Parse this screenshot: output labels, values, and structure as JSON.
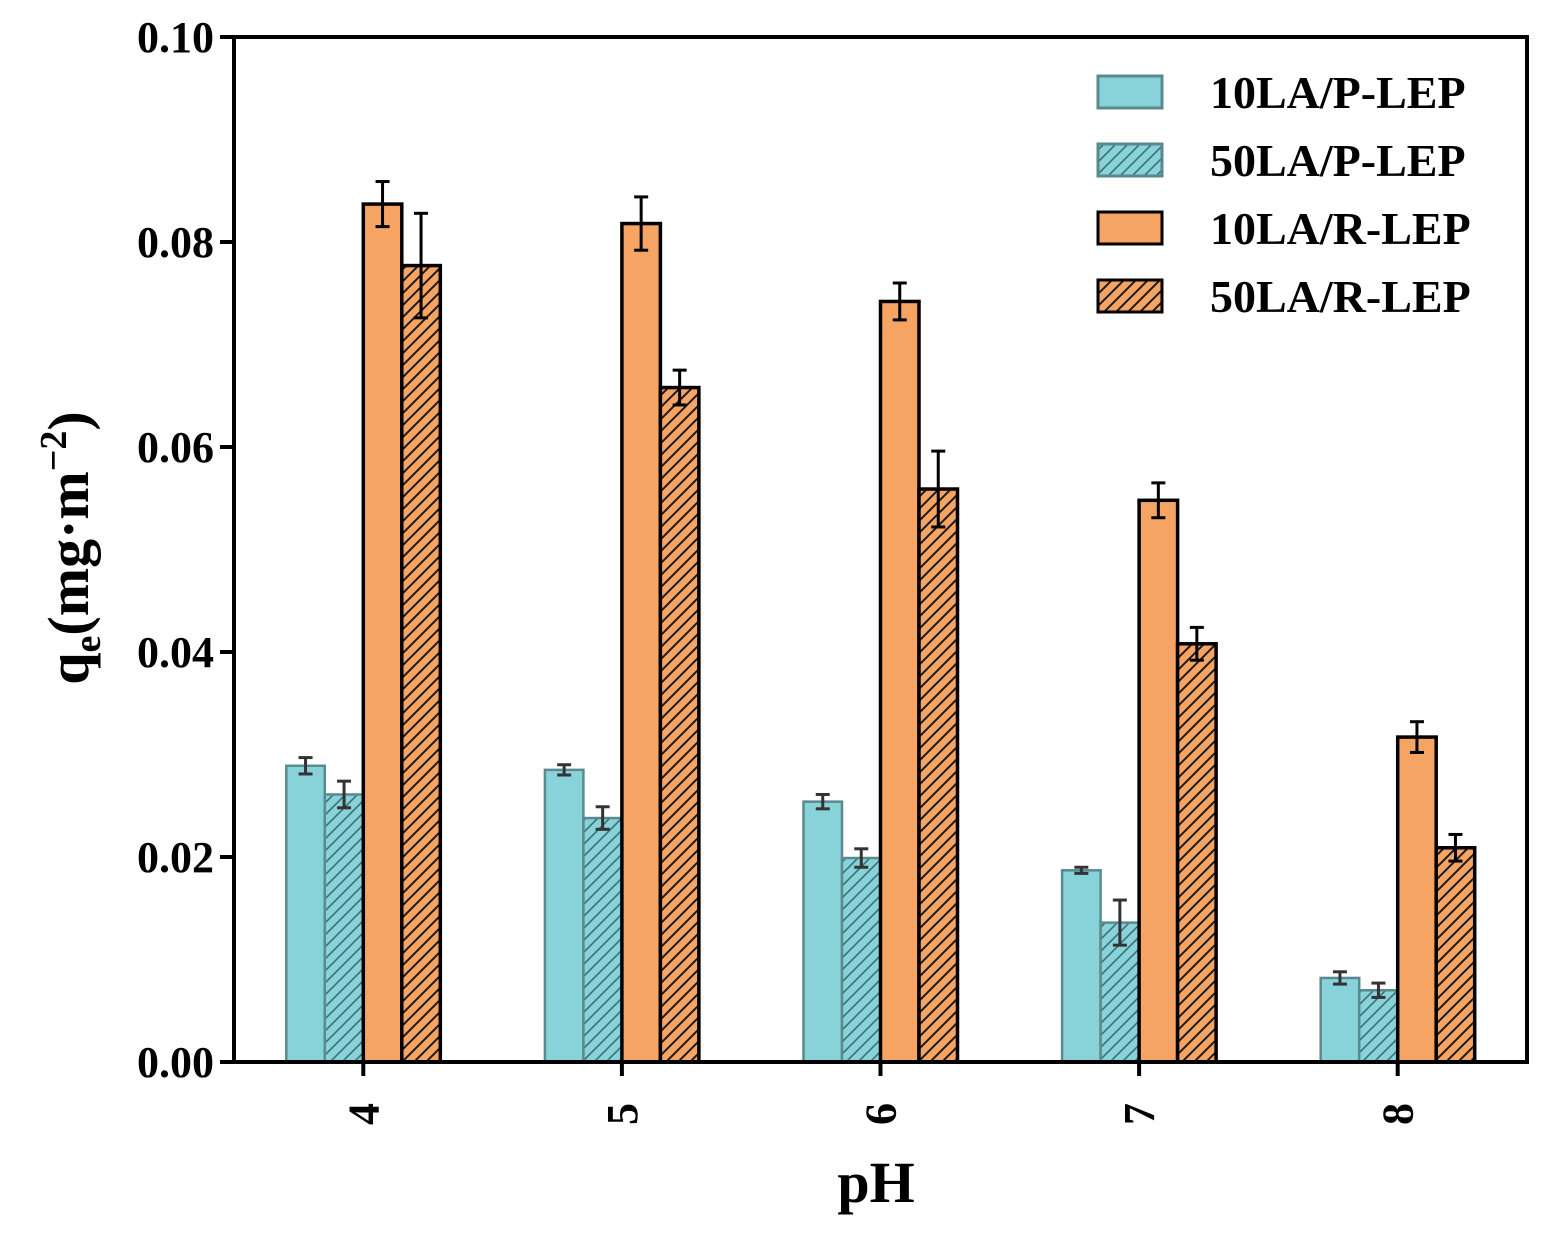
{
  "chart_data": {
    "type": "bar",
    "xlabel": "pH",
    "ylabel": {
      "base": "q",
      "sub": "e",
      "unit": "(mg·m",
      "sup": "−2",
      "close": ")"
    },
    "categories": [
      "4",
      "5",
      "6",
      "7",
      "8"
    ],
    "ylim": [
      0.0,
      0.1
    ],
    "yticks": [
      "0.00",
      "0.02",
      "0.04",
      "0.06",
      "0.08",
      "0.10"
    ],
    "legend_position": "top-right",
    "series": [
      {
        "name": "10LA/P-LEP",
        "color": "#87d3d9",
        "hatched": false,
        "values": [
          0.0289,
          0.0285,
          0.0254,
          0.0187,
          0.0082
        ],
        "errors": [
          0.0008,
          0.0005,
          0.0007,
          0.0003,
          0.0006
        ]
      },
      {
        "name": "50LA/P-LEP",
        "color": "#87d3d9",
        "hatched": true,
        "values": [
          0.0261,
          0.0238,
          0.0199,
          0.0136,
          0.007
        ],
        "errors": [
          0.0013,
          0.0011,
          0.0009,
          0.0022,
          0.0007
        ]
      },
      {
        "name": "10LA/R-LEP",
        "color": "#f5a463",
        "hatched": false,
        "values": [
          0.0837,
          0.0818,
          0.0742,
          0.0548,
          0.0317
        ],
        "errors": [
          0.0022,
          0.0026,
          0.0018,
          0.0017,
          0.0015
        ]
      },
      {
        "name": "50LA/R-LEP",
        "color": "#f5a463",
        "hatched": true,
        "values": [
          0.0777,
          0.0658,
          0.0559,
          0.0408,
          0.0209
        ],
        "errors": [
          0.0051,
          0.0017,
          0.0037,
          0.0016,
          0.0013
        ]
      }
    ]
  }
}
